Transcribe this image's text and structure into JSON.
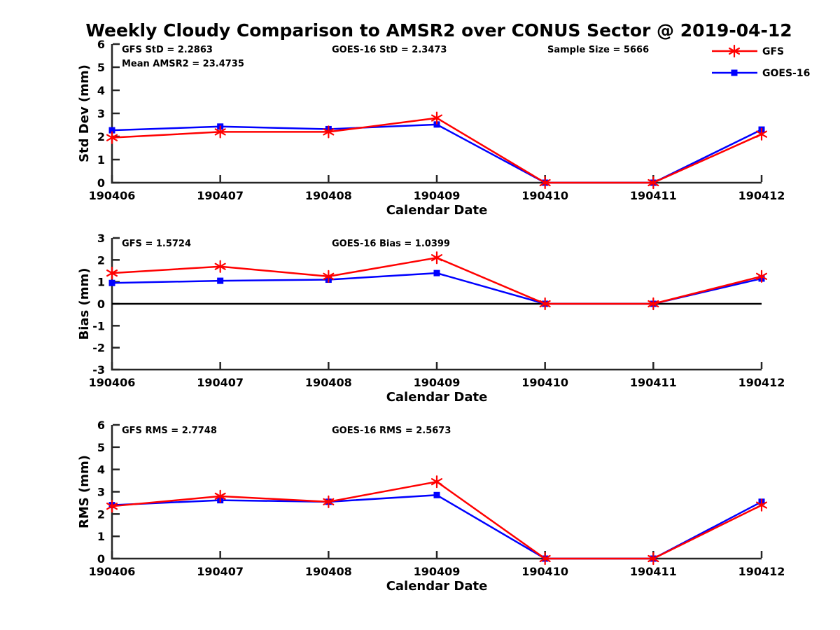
{
  "title": "Weekly Cloudy Comparison to AMSR2 over CONUS Sector @ 2019-04-12",
  "axis_color": "#262626",
  "text_color": "#000000",
  "legend": {
    "items": [
      "GFS",
      "GOES-16"
    ],
    "position": "top-right-outside-plot"
  },
  "chart_data": [
    {
      "type": "line",
      "name": "std-dev",
      "ylabel": "Std Dev (mm)",
      "xlabel": "Calendar Date",
      "ylim": [
        0,
        6
      ],
      "yticks": [
        0,
        1,
        2,
        3,
        4,
        5,
        6
      ],
      "grid": false,
      "zero_line": false,
      "show_legend": true,
      "categories": [
        "190406",
        "190407",
        "190408",
        "190409",
        "190410",
        "190411",
        "190412"
      ],
      "annotations": [
        {
          "text": "GFS StD = 2.2863",
          "col": 0,
          "row": 0
        },
        {
          "text": "Mean AMSR2 = 23.4735",
          "col": 0,
          "row": 1
        },
        {
          "text": "GOES-16 StD = 2.3473",
          "col": 1,
          "row": 0
        },
        {
          "text": "Sample Size = 5666",
          "col": 2,
          "row": 0
        }
      ],
      "series": [
        {
          "name": "GFS",
          "color": "#ff0000",
          "marker": "asterisk",
          "values": [
            1.95,
            2.2,
            2.2,
            2.8,
            0,
            0,
            2.1
          ]
        },
        {
          "name": "GOES-16",
          "color": "#0000ff",
          "marker": "square",
          "values": [
            2.27,
            2.43,
            2.32,
            2.52,
            0,
            0,
            2.3
          ]
        }
      ]
    },
    {
      "type": "line",
      "name": "bias",
      "ylabel": "Bias (mm)",
      "xlabel": "Calendar Date",
      "ylim": [
        -3,
        3
      ],
      "yticks": [
        -3,
        -2,
        -1,
        0,
        1,
        2,
        3
      ],
      "grid": false,
      "zero_line": true,
      "show_legend": false,
      "categories": [
        "190406",
        "190407",
        "190408",
        "190409",
        "190410",
        "190411",
        "190412"
      ],
      "annotations": [
        {
          "text": "GFS = 1.5724",
          "col": 0,
          "row": 0
        },
        {
          "text": "GOES-16 Bias  = 1.0399",
          "col": 1,
          "row": 0
        }
      ],
      "series": [
        {
          "name": "GFS",
          "color": "#ff0000",
          "marker": "asterisk",
          "values": [
            1.4,
            1.7,
            1.25,
            2.1,
            0,
            0,
            1.25
          ]
        },
        {
          "name": "GOES-16",
          "color": "#0000ff",
          "marker": "square",
          "values": [
            0.95,
            1.05,
            1.1,
            1.4,
            0,
            0,
            1.15
          ]
        }
      ]
    },
    {
      "type": "line",
      "name": "rms",
      "ylabel": "RMS (mm)",
      "xlabel": "Calendar Date",
      "ylim": [
        0,
        6
      ],
      "yticks": [
        0,
        1,
        2,
        3,
        4,
        5,
        6
      ],
      "grid": false,
      "zero_line": false,
      "show_legend": false,
      "categories": [
        "190406",
        "190407",
        "190408",
        "190409",
        "190410",
        "190411",
        "190412"
      ],
      "annotations": [
        {
          "text": "GFS RMS = 2.7748",
          "col": 0,
          "row": 0
        },
        {
          "text": "GOES-16 RMS = 2.5673",
          "col": 1,
          "row": 0
        }
      ],
      "series": [
        {
          "name": "GFS",
          "color": "#ff0000",
          "marker": "asterisk",
          "values": [
            2.35,
            2.8,
            2.55,
            3.45,
            0,
            0,
            2.4
          ]
        },
        {
          "name": "GOES-16",
          "color": "#0000ff",
          "marker": "square",
          "values": [
            2.4,
            2.62,
            2.55,
            2.85,
            0,
            0,
            2.55
          ]
        }
      ]
    }
  ]
}
